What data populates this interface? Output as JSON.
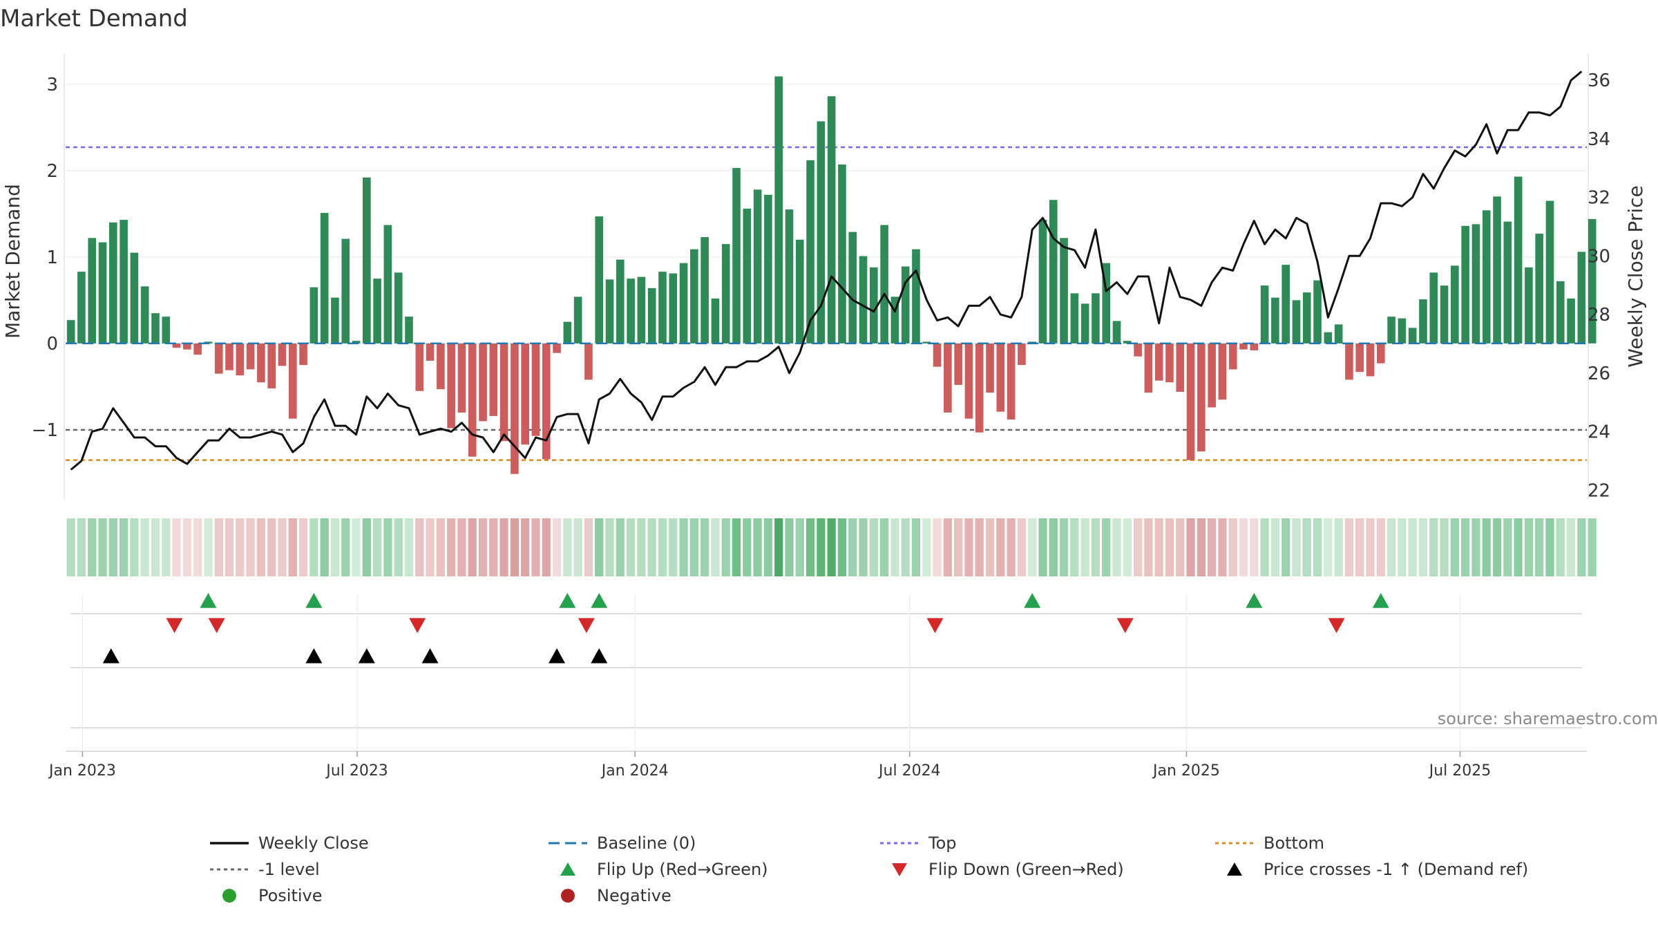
{
  "title": "Market Demand",
  "source": "source: sharemaestro.com",
  "colors": {
    "positive": "#2e8b57",
    "negative": "#cd5c5c",
    "close": "#111111",
    "baseline": "#1f77b4",
    "top": "#7b68ee",
    "minus1": "#666666",
    "bottom": "#e08c1a",
    "flip_up": "#22a04b",
    "flip_down": "#d62728",
    "cross": "#000000",
    "dot_pos": "#2ca02c",
    "dot_neg": "#b22222"
  },
  "chart_data": {
    "type": "bar+line",
    "title": "Market Demand",
    "ylabel_left": "Market Demand",
    "ylabel_right": "Weekly Close Price",
    "ylim_left": [
      -1.8,
      3.35
    ],
    "ylim_right": [
      21.7,
      36.9
    ],
    "yticks_left": [
      3,
      2,
      1,
      0,
      -1
    ],
    "ytick_labels_left": [
      "3",
      "2",
      "1",
      "0",
      "−1"
    ],
    "yticks_right": [
      36,
      34,
      32,
      30,
      28,
      26,
      24,
      22
    ],
    "ytick_labels_right": [
      "36",
      "34",
      "32",
      "30",
      "28",
      "26",
      "24",
      "22"
    ],
    "x_start": "2022-12-26",
    "week_count": 144,
    "x_ticks": [
      {
        "label": "Jan 2023",
        "week": 1.6
      },
      {
        "label": "Jul 2023",
        "week": 27.6
      },
      {
        "label": "Jan 2024",
        "week": 53.9
      },
      {
        "label": "Jul 2024",
        "week": 79.9
      },
      {
        "label": "Jan 2025",
        "week": 106.1
      },
      {
        "label": "Jul 2025",
        "week": 132.0
      }
    ],
    "reference_lines": {
      "baseline": 0,
      "top": 2.27,
      "minus1": -1,
      "bottom": -1.35
    },
    "demand": [
      0.27,
      0.83,
      1.22,
      1.17,
      1.4,
      1.43,
      1.05,
      0.66,
      0.35,
      0.31,
      -0.05,
      -0.07,
      -0.13,
      0.02,
      -0.35,
      -0.31,
      -0.37,
      -0.3,
      -0.45,
      -0.52,
      -0.26,
      -0.87,
      -0.25,
      0.65,
      1.51,
      0.53,
      1.21,
      0.03,
      1.92,
      0.75,
      1.37,
      0.82,
      0.31,
      -0.55,
      -0.2,
      -0.53,
      -0.98,
      -0.8,
      -1.31,
      -0.9,
      -0.84,
      -1.13,
      -1.51,
      -1.17,
      -1.07,
      -1.34,
      -0.11,
      0.25,
      0.54,
      -0.42,
      1.47,
      0.74,
      0.97,
      0.75,
      0.77,
      0.64,
      0.83,
      0.81,
      0.93,
      1.09,
      1.23,
      0.52,
      1.15,
      2.03,
      1.56,
      1.78,
      1.72,
      3.09,
      1.55,
      1.2,
      2.12,
      2.57,
      2.86,
      2.07,
      1.29,
      1.01,
      0.88,
      1.37,
      0.54,
      0.89,
      1.09,
      0.02,
      -0.27,
      -0.8,
      -0.48,
      -0.87,
      -1.03,
      -0.57,
      -0.79,
      -0.88,
      -0.25,
      0.02,
      1.43,
      1.66,
      1.22,
      0.58,
      0.46,
      0.58,
      0.93,
      0.26,
      0.03,
      -0.15,
      -0.57,
      -0.43,
      -0.45,
      -0.56,
      -1.35,
      -1.25,
      -0.74,
      -0.65,
      -0.3,
      -0.07,
      -0.08,
      0.67,
      0.53,
      0.91,
      0.5,
      0.59,
      0.73,
      0.13,
      0.22,
      -0.42,
      -0.33,
      -0.38,
      -0.23,
      0.31,
      0.29,
      0.18,
      0.51,
      0.82,
      0.67,
      0.9,
      1.36,
      1.38,
      1.54,
      1.7,
      1.41,
      1.93,
      0.88,
      1.27,
      1.65,
      0.72,
      0.52,
      1.06,
      1.44
    ],
    "close": [
      22.7,
      23.0,
      24.0,
      24.1,
      24.8,
      24.3,
      23.8,
      23.8,
      23.5,
      23.5,
      23.1,
      22.9,
      23.3,
      23.7,
      23.7,
      24.1,
      23.8,
      23.8,
      23.9,
      24.0,
      23.9,
      23.3,
      23.6,
      24.5,
      25.1,
      24.2,
      24.2,
      23.9,
      25.2,
      24.8,
      25.3,
      24.9,
      24.8,
      23.9,
      24.0,
      24.1,
      24.0,
      24.3,
      23.9,
      23.8,
      23.3,
      23.9,
      23.5,
      23.1,
      23.8,
      23.7,
      24.5,
      24.6,
      24.6,
      23.6,
      25.1,
      25.3,
      25.8,
      25.3,
      25.0,
      24.4,
      25.2,
      25.2,
      25.5,
      25.7,
      26.2,
      25.6,
      26.2,
      26.2,
      26.4,
      26.4,
      26.6,
      26.9,
      26.0,
      26.7,
      27.8,
      28.3,
      29.3,
      28.9,
      28.5,
      28.3,
      28.1,
      28.7,
      28.1,
      29.1,
      29.5,
      28.5,
      27.8,
      27.9,
      27.6,
      28.3,
      28.3,
      28.6,
      28.0,
      27.9,
      28.6,
      30.9,
      31.3,
      30.6,
      30.3,
      30.2,
      29.6,
      30.9,
      28.8,
      29.1,
      28.7,
      29.3,
      29.3,
      27.7,
      29.6,
      28.6,
      28.5,
      28.3,
      29.1,
      29.6,
      29.5,
      30.4,
      31.2,
      30.4,
      30.9,
      30.6,
      31.3,
      31.1,
      29.8,
      27.9,
      28.9,
      30.0,
      30.0,
      30.6,
      31.8,
      31.8,
      31.7,
      32.0,
      32.8,
      32.3,
      33.0,
      33.6,
      33.4,
      33.8,
      34.5,
      33.5,
      34.3,
      34.3,
      34.9,
      34.9,
      34.8,
      35.1,
      36.0,
      36.3
    ],
    "strip_colors": [
      "#b3ddc0",
      "#b3ddc0",
      "#9ad3ad",
      "#9ad3ad",
      "#9ad3ad",
      "#9ad3ad",
      "#b3ddc0",
      "#c8e6d0",
      "#c8e6d0",
      "#c8e6d0",
      "#f3dada",
      "#f3dada",
      "#f3dada",
      "#d0ecd8",
      "#eccaca",
      "#eccaca",
      "#eccaca",
      "#eccaca",
      "#e8c0c0",
      "#e8c0c0",
      "#eccaca",
      "#e3b1b1",
      "#eccaca",
      "#b3ddc0",
      "#8ccb9f",
      "#c8e6d0",
      "#9ad3ad",
      "#d0ecd8",
      "#8ccb9f",
      "#b3ddc0",
      "#9ad3ad",
      "#b3ddc0",
      "#c8e6d0",
      "#e8c0c0",
      "#eccaca",
      "#e8c0c0",
      "#e3b1b1",
      "#e3b1b1",
      "#dda6a6",
      "#e3b1b1",
      "#e3b1b1",
      "#dda6a6",
      "#d99f9f",
      "#dda6a6",
      "#e3b1b1",
      "#dda6a6",
      "#f3dada",
      "#c8e6d0",
      "#c8e6d0",
      "#eccaca",
      "#8ccb9f",
      "#b3ddc0",
      "#9ad3ad",
      "#b3ddc0",
      "#b3ddc0",
      "#b3ddc0",
      "#b3ddc0",
      "#b3ddc0",
      "#9ad3ad",
      "#9ad3ad",
      "#9ad3ad",
      "#c8e6d0",
      "#9ad3ad",
      "#6fbe86",
      "#8ccb9f",
      "#8ccb9f",
      "#8ccb9f",
      "#4ea866",
      "#8ccb9f",
      "#9ad3ad",
      "#6fbe86",
      "#5cb474",
      "#52ad6b",
      "#6fbe86",
      "#9ad3ad",
      "#9ad3ad",
      "#b3ddc0",
      "#9ad3ad",
      "#c8e6d0",
      "#b3ddc0",
      "#9ad3ad",
      "#d0ecd8",
      "#f3dada",
      "#e3b1b1",
      "#e8c0c0",
      "#e3b1b1",
      "#e3b1b1",
      "#e8c0c0",
      "#e3b1b1",
      "#e3b1b1",
      "#eccaca",
      "#d0ecd8",
      "#8ccb9f",
      "#8ccb9f",
      "#9ad3ad",
      "#b3ddc0",
      "#c8e6d0",
      "#b3ddc0",
      "#9ad3ad",
      "#c8e6d0",
      "#d0ecd8",
      "#eccaca",
      "#e8c0c0",
      "#e8c0c0",
      "#e8c0c0",
      "#e8c0c0",
      "#dda6a6",
      "#dda6a6",
      "#e3b1b1",
      "#e3b1b1",
      "#eccaca",
      "#f3dada",
      "#f3dada",
      "#b3ddc0",
      "#c8e6d0",
      "#9ad3ad",
      "#c8e6d0",
      "#b3ddc0",
      "#b3ddc0",
      "#d0ecd8",
      "#c8e6d0",
      "#eccaca",
      "#eccaca",
      "#eccaca",
      "#eccaca",
      "#c8e6d0",
      "#c8e6d0",
      "#c8e6d0",
      "#c8e6d0",
      "#b3ddc0",
      "#b3ddc0",
      "#9ad3ad",
      "#9ad3ad",
      "#9ad3ad",
      "#8ccb9f",
      "#8ccb9f",
      "#9ad3ad",
      "#8ccb9f",
      "#9ad3ad",
      "#9ad3ad",
      "#8ccb9f",
      "#b3ddc0",
      "#c8e6d0",
      "#9ad3ad",
      "#9ad3ad"
    ],
    "flip_up_weeks": [
      13.5,
      23.5,
      47.5,
      50.5,
      91.5,
      112.5,
      124.5
    ],
    "flip_down_weeks": [
      10.3,
      14.3,
      33.3,
      49.3,
      82.3,
      100.3,
      120.3
    ],
    "cross_weeks": [
      4.3,
      23.5,
      28.5,
      34.5,
      46.5,
      50.5
    ]
  },
  "legend": [
    {
      "label": "Weekly Close",
      "symbol": "line-solid",
      "color": "#111111"
    },
    {
      "label": "Baseline (0)",
      "symbol": "line-dash",
      "color": "#1f77b4"
    },
    {
      "label": "Top",
      "symbol": "line-dot",
      "color": "#7b68ee"
    },
    {
      "label": "Bottom",
      "symbol": "line-dot",
      "color": "#e08c1a"
    },
    {
      "label": "-1 level",
      "symbol": "line-dot",
      "color": "#666666"
    },
    {
      "label": "Flip Up (Red→Green)",
      "symbol": "tri-up",
      "color": "#22a04b"
    },
    {
      "label": "Flip Down (Green→Red)",
      "symbol": "tri-down",
      "color": "#d62728"
    },
    {
      "label": "Price crosses -1 ↑ (Demand ref)",
      "symbol": "tri-up",
      "color": "#000000"
    },
    {
      "label": "Positive",
      "symbol": "dot",
      "color": "#2ca02c"
    },
    {
      "label": "Negative",
      "symbol": "dot",
      "color": "#b22222"
    }
  ]
}
